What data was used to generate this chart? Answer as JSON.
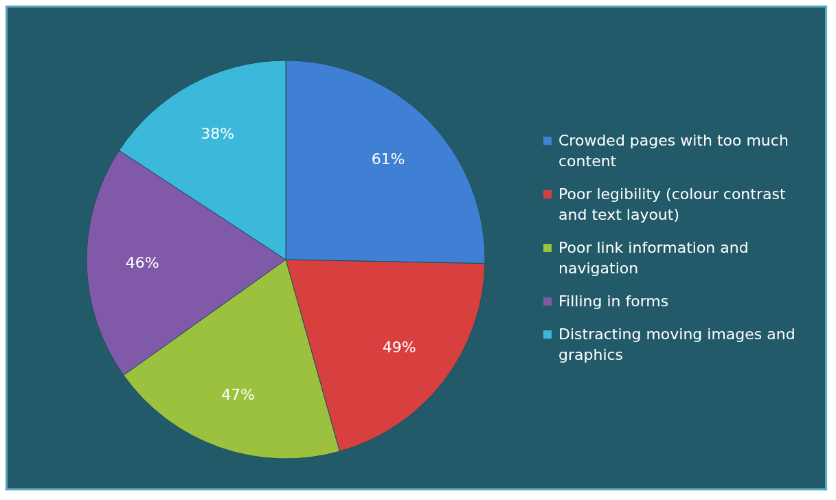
{
  "chart_data": {
    "type": "pie",
    "categories": [
      "Crowded pages with too much content",
      "Poor legibility (colour contrast and text layout)",
      "Poor link information and navigation",
      "Filling in forms",
      "Distracting moving images and graphics"
    ],
    "values": [
      61,
      49,
      47,
      46,
      38
    ],
    "colors": [
      "#3f7fd4",
      "#d8403f",
      "#9cc13f",
      "#8059a8",
      "#3bb8da"
    ],
    "value_labels": [
      "61%",
      "49%",
      "47%",
      "46%",
      "38%"
    ],
    "legend": "right"
  }
}
